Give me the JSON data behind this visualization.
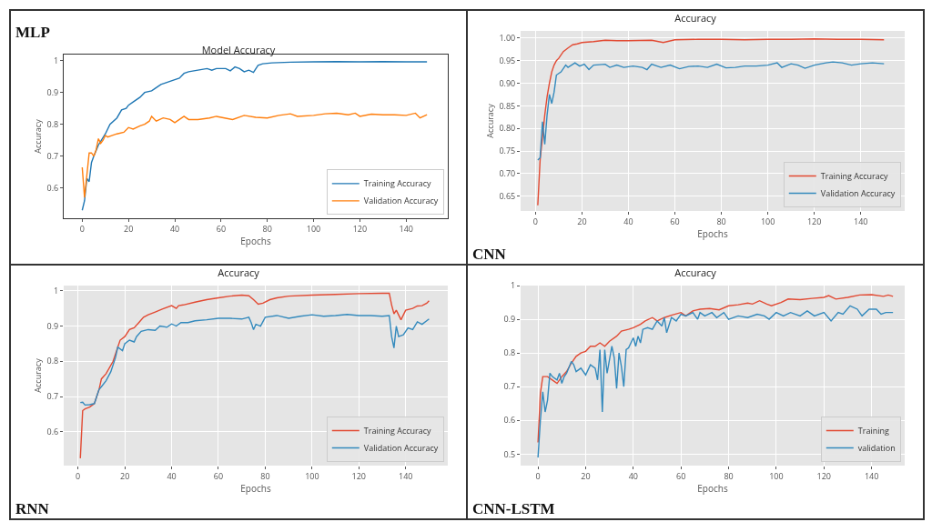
{
  "chart_data": [
    {
      "type": "line",
      "title": "Model Accuracy",
      "xlabel": "Epochs",
      "ylabel": "Accuracy",
      "annotations": [
        "MLP"
      ],
      "grid": false,
      "legend": "bottom right",
      "xlim": [
        -8,
        158
      ],
      "xticks": [
        0,
        20,
        40,
        60,
        80,
        100,
        120,
        140
      ],
      "ylim": [
        0.505,
        1.019
      ],
      "yticks": [
        0.6,
        0.7,
        0.8,
        0.9,
        1.0
      ],
      "series": [
        {
          "name": "Training Accuracy",
          "color": "#1f77b4",
          "x": [
            0,
            1,
            2,
            3,
            4,
            5,
            7,
            10,
            12,
            15,
            17,
            19,
            20,
            22,
            25,
            27,
            30,
            32,
            34,
            36,
            38,
            40,
            42,
            44,
            46,
            50,
            54,
            56,
            58,
            62,
            64,
            66,
            68,
            70,
            72,
            74,
            76,
            78,
            82,
            90,
            100,
            110,
            120,
            130,
            140,
            149
          ],
          "values": [
            0.53,
            0.56,
            0.63,
            0.62,
            0.68,
            0.7,
            0.735,
            0.77,
            0.8,
            0.82,
            0.845,
            0.85,
            0.86,
            0.87,
            0.885,
            0.9,
            0.905,
            0.915,
            0.925,
            0.93,
            0.935,
            0.94,
            0.945,
            0.96,
            0.965,
            0.97,
            0.975,
            0.97,
            0.975,
            0.975,
            0.968,
            0.98,
            0.975,
            0.965,
            0.97,
            0.963,
            0.985,
            0.99,
            0.993,
            0.995,
            0.996,
            0.997,
            0.996,
            0.997,
            0.996,
            0.996
          ]
        },
        {
          "name": "Validation Accuracy",
          "color": "#ff7f0e",
          "x": [
            0,
            1,
            2,
            3,
            4,
            5,
            6,
            7,
            8,
            9,
            10,
            11,
            13,
            15,
            18,
            20,
            22,
            25,
            27,
            29,
            30,
            32,
            35,
            38,
            40,
            42,
            44,
            46,
            50,
            55,
            58,
            60,
            65,
            70,
            75,
            80,
            85,
            90,
            93,
            100,
            105,
            110,
            115,
            118,
            120,
            125,
            130,
            135,
            140,
            144,
            146,
            149
          ],
          "values": [
            0.665,
            0.57,
            0.64,
            0.71,
            0.71,
            0.7,
            0.72,
            0.755,
            0.74,
            0.75,
            0.765,
            0.76,
            0.765,
            0.77,
            0.775,
            0.79,
            0.785,
            0.795,
            0.8,
            0.81,
            0.825,
            0.81,
            0.82,
            0.815,
            0.805,
            0.815,
            0.825,
            0.815,
            0.815,
            0.82,
            0.825,
            0.822,
            0.815,
            0.828,
            0.822,
            0.82,
            0.828,
            0.833,
            0.825,
            0.828,
            0.833,
            0.835,
            0.83,
            0.835,
            0.825,
            0.832,
            0.83,
            0.83,
            0.828,
            0.835,
            0.82,
            0.83
          ]
        }
      ]
    },
    {
      "type": "line",
      "title": "Accuracy",
      "xlabel": "Epochs",
      "ylabel": "Accuracy",
      "annotations": [
        "CNN"
      ],
      "grid": true,
      "legend": "bottom right",
      "xlim": [
        -6.4,
        158.9
      ],
      "xticks": [
        0,
        20,
        40,
        60,
        80,
        100,
        120,
        140
      ],
      "ylim": [
        0.6175,
        1.0156
      ],
      "yticks": [
        {
          "value": 0.65,
          "label": "0.65"
        },
        {
          "value": 0.7,
          "label": "0.70"
        },
        {
          "value": 0.75,
          "label": "0.75"
        },
        {
          "value": 0.8,
          "label": "0.80"
        },
        {
          "value": 0.85,
          "label": "0.85"
        },
        {
          "value": 0.9,
          "label": "0.90"
        },
        {
          "value": 0.95,
          "label": "0.95"
        },
        {
          "value": 1.0,
          "label": "1.00"
        }
      ],
      "series": [
        {
          "name": "Training Accuracy",
          "color": "#e24a33",
          "x": [
            1,
            2,
            3,
            4,
            5,
            6,
            7,
            8,
            9,
            10,
            12,
            14,
            16,
            18,
            20,
            25,
            30,
            35,
            40,
            50,
            55,
            60,
            70,
            80,
            90,
            100,
            110,
            120,
            130,
            140,
            150
          ],
          "values": [
            0.63,
            0.73,
            0.78,
            0.83,
            0.87,
            0.9,
            0.925,
            0.94,
            0.95,
            0.955,
            0.97,
            0.978,
            0.985,
            0.987,
            0.99,
            0.992,
            0.995,
            0.994,
            0.994,
            0.995,
            0.99,
            0.996,
            0.997,
            0.997,
            0.996,
            0.997,
            0.997,
            0.998,
            0.997,
            0.997,
            0.996
          ]
        },
        {
          "name": "Validation Accuracy",
          "color": "#348abd",
          "x": [
            1,
            2,
            3,
            4,
            5,
            6,
            7,
            8,
            9,
            11,
            13,
            14,
            17,
            19,
            21,
            23,
            25,
            30,
            32,
            35,
            38,
            42,
            46,
            48,
            50,
            54,
            58,
            62,
            66,
            70,
            74,
            78,
            82,
            86,
            90,
            95,
            100,
            104,
            106,
            110,
            113,
            116,
            120,
            125,
            128,
            132,
            136,
            140,
            145,
            150
          ],
          "values": [
            0.73,
            0.735,
            0.815,
            0.765,
            0.83,
            0.875,
            0.855,
            0.88,
            0.918,
            0.925,
            0.94,
            0.935,
            0.945,
            0.938,
            0.942,
            0.93,
            0.94,
            0.942,
            0.935,
            0.94,
            0.935,
            0.938,
            0.935,
            0.93,
            0.942,
            0.935,
            0.94,
            0.932,
            0.937,
            0.938,
            0.935,
            0.942,
            0.934,
            0.935,
            0.938,
            0.938,
            0.94,
            0.945,
            0.935,
            0.943,
            0.94,
            0.933,
            0.94,
            0.945,
            0.947,
            0.945,
            0.94,
            0.943,
            0.945,
            0.943
          ]
        }
      ]
    },
    {
      "type": "line",
      "title": "Accuracy",
      "xlabel": "Epochs",
      "ylabel": "Accuracy",
      "annotations": [
        "RNN"
      ],
      "grid": true,
      "legend": "bottom right",
      "xlim": [
        -6.1,
        158
      ],
      "xticks": [
        0,
        20,
        40,
        60,
        80,
        100,
        120,
        140
      ],
      "ylim": [
        0.504,
        1.015
      ],
      "yticks": [
        0.6,
        0.7,
        0.8,
        0.9,
        1.0
      ],
      "series": [
        {
          "name": "Training Accuracy",
          "color": "#e24a33",
          "x": [
            1,
            2,
            3,
            5,
            7,
            8,
            9,
            10,
            12,
            15,
            17,
            18,
            20,
            22,
            24,
            26,
            28,
            30,
            33,
            36,
            40,
            42,
            43,
            45,
            50,
            55,
            60,
            65,
            70,
            73,
            75,
            77,
            79,
            82,
            85,
            90,
            100,
            110,
            120,
            130,
            133,
            134,
            135,
            136,
            138,
            140,
            143,
            145,
            147,
            149,
            150
          ],
          "values": [
            0.525,
            0.66,
            0.665,
            0.67,
            0.68,
            0.7,
            0.72,
            0.75,
            0.765,
            0.8,
            0.84,
            0.86,
            0.87,
            0.89,
            0.895,
            0.91,
            0.925,
            0.932,
            0.94,
            0.948,
            0.958,
            0.95,
            0.958,
            0.96,
            0.968,
            0.975,
            0.98,
            0.985,
            0.988,
            0.986,
            0.975,
            0.962,
            0.965,
            0.975,
            0.98,
            0.985,
            0.988,
            0.99,
            0.992,
            0.993,
            0.993,
            0.96,
            0.935,
            0.945,
            0.918,
            0.945,
            0.95,
            0.957,
            0.958,
            0.965,
            0.972
          ]
        },
        {
          "name": "Validation Accuracy",
          "color": "#348abd",
          "x": [
            1,
            2,
            3,
            5,
            7,
            8,
            9,
            10,
            12,
            14,
            16,
            17,
            19,
            20,
            22,
            24,
            25,
            27,
            30,
            33,
            35,
            38,
            40,
            42,
            44,
            47,
            50,
            55,
            60,
            65,
            70,
            73,
            74,
            75,
            76,
            78,
            80,
            85,
            90,
            95,
            100,
            105,
            110,
            115,
            120,
            125,
            130,
            133,
            134,
            135,
            136,
            137,
            139,
            141,
            143,
            145,
            147,
            150
          ],
          "values": [
            0.683,
            0.684,
            0.676,
            0.677,
            0.68,
            0.7,
            0.72,
            0.728,
            0.745,
            0.77,
            0.81,
            0.84,
            0.83,
            0.85,
            0.86,
            0.855,
            0.87,
            0.885,
            0.89,
            0.888,
            0.9,
            0.897,
            0.906,
            0.9,
            0.91,
            0.91,
            0.915,
            0.918,
            0.922,
            0.922,
            0.92,
            0.925,
            0.91,
            0.89,
            0.905,
            0.9,
            0.925,
            0.93,
            0.922,
            0.928,
            0.932,
            0.928,
            0.93,
            0.933,
            0.93,
            0.93,
            0.928,
            0.93,
            0.87,
            0.838,
            0.9,
            0.87,
            0.875,
            0.895,
            0.89,
            0.912,
            0.905,
            0.92
          ]
        }
      ]
    },
    {
      "type": "line",
      "title": "Accuracy",
      "xlabel": "Epochs",
      "annotations": [
        "CNN-LSTM"
      ],
      "grid": true,
      "legend": "bottom right",
      "xlim": [
        -7.3,
        153.9
      ],
      "xticks": [
        0,
        20,
        40,
        60,
        80,
        100,
        120,
        140
      ],
      "ylim": [
        0.466,
        1.0
      ],
      "yticks": [
        0.5,
        0.6,
        0.7,
        0.8,
        0.9,
        1.0
      ],
      "series": [
        {
          "name": "Training",
          "color": "#e24a33",
          "x": [
            0,
            1,
            2,
            4,
            6,
            8,
            10,
            12,
            14,
            16,
            18,
            20,
            22,
            24,
            26,
            28,
            30,
            33,
            35,
            38,
            40,
            43,
            45,
            48,
            50,
            53,
            56,
            60,
            62,
            65,
            68,
            72,
            76,
            80,
            84,
            88,
            90,
            93,
            96,
            98,
            102,
            105,
            110,
            115,
            120,
            122,
            125,
            130,
            135,
            140,
            145,
            147,
            149
          ],
          "values": [
            0.535,
            0.68,
            0.73,
            0.73,
            0.72,
            0.71,
            0.73,
            0.745,
            0.77,
            0.79,
            0.8,
            0.805,
            0.82,
            0.82,
            0.83,
            0.82,
            0.835,
            0.85,
            0.865,
            0.87,
            0.875,
            0.885,
            0.895,
            0.905,
            0.895,
            0.905,
            0.912,
            0.92,
            0.91,
            0.925,
            0.93,
            0.932,
            0.928,
            0.94,
            0.943,
            0.948,
            0.945,
            0.955,
            0.945,
            0.94,
            0.95,
            0.96,
            0.958,
            0.962,
            0.965,
            0.97,
            0.96,
            0.965,
            0.972,
            0.973,
            0.968,
            0.972,
            0.968
          ]
        },
        {
          "name": "validation",
          "color": "#348abd",
          "x": [
            0,
            1,
            2,
            3,
            4,
            5,
            6,
            8,
            9,
            10,
            11,
            12,
            14,
            15,
            16,
            18,
            20,
            22,
            24,
            25,
            26,
            27,
            28,
            29,
            30,
            31,
            32,
            33,
            34,
            35,
            36,
            37,
            38,
            40,
            41,
            42,
            43,
            44,
            46,
            48,
            50,
            52,
            53,
            54,
            56,
            58,
            60,
            62,
            65,
            67,
            68,
            70,
            73,
            75,
            78,
            80,
            84,
            88,
            92,
            95,
            97,
            100,
            103,
            106,
            110,
            113,
            116,
            120,
            123,
            126,
            128,
            131,
            134,
            136,
            139,
            142,
            144,
            146,
            149
          ],
          "values": [
            0.49,
            0.6,
            0.685,
            0.625,
            0.66,
            0.74,
            0.73,
            0.72,
            0.74,
            0.71,
            0.73,
            0.74,
            0.775,
            0.765,
            0.745,
            0.755,
            0.735,
            0.765,
            0.755,
            0.72,
            0.81,
            0.625,
            0.81,
            0.74,
            0.78,
            0.82,
            0.785,
            0.695,
            0.8,
            0.76,
            0.7,
            0.81,
            0.815,
            0.845,
            0.82,
            0.85,
            0.83,
            0.87,
            0.875,
            0.87,
            0.895,
            0.88,
            0.905,
            0.86,
            0.905,
            0.895,
            0.915,
            0.91,
            0.92,
            0.9,
            0.92,
            0.91,
            0.92,
            0.905,
            0.92,
            0.9,
            0.91,
            0.905,
            0.915,
            0.91,
            0.9,
            0.92,
            0.91,
            0.92,
            0.91,
            0.925,
            0.91,
            0.92,
            0.895,
            0.92,
            0.915,
            0.94,
            0.93,
            0.91,
            0.93,
            0.93,
            0.915,
            0.92,
            0.92
          ]
        }
      ]
    }
  ]
}
